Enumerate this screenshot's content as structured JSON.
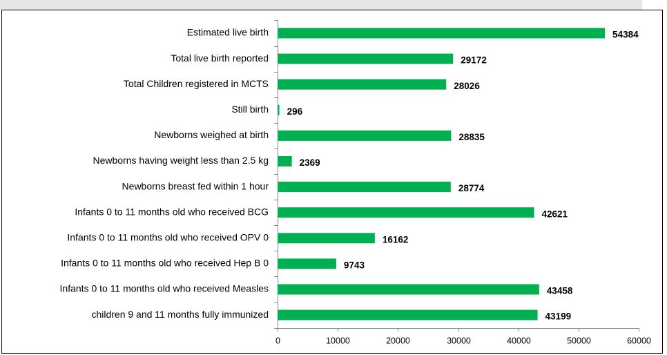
{
  "chart_data": {
    "type": "bar",
    "orientation": "horizontal",
    "categories": [
      "Estimated live birth",
      "Total live birth reported",
      "Total Children registered in MCTS",
      "Still birth",
      "Newborns weighed at birth",
      "Newborns having weight less than 2.5 kg",
      "Newborns breast fed within 1 hour",
      "Infants 0 to 11 months old who received BCG",
      "Infants 0 to 11 months old who received OPV 0",
      "Infants 0 to 11 months old who received Hep B 0",
      "Infants 0 to 11 months old who received Measles",
      "children 9 and 11 months fully immunized"
    ],
    "values": [
      54384,
      29172,
      28026,
      296,
      28835,
      2369,
      28774,
      42621,
      16162,
      9743,
      43458,
      43199
    ],
    "color": "#00b050",
    "xlim": [
      0,
      60000
    ],
    "xticks": [
      0,
      10000,
      20000,
      30000,
      40000,
      50000,
      60000
    ],
    "grid": false
  }
}
